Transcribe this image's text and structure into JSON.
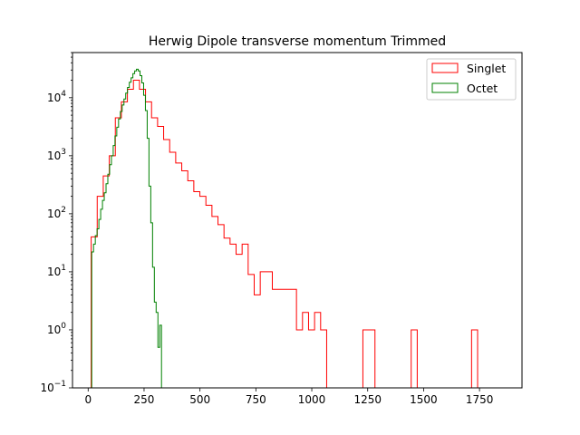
{
  "chart_data": {
    "type": "step-histogram",
    "title": "Herwig Dipole transverse momentum Trimmed",
    "xlabel": "",
    "ylabel": "",
    "xlim": [
      -70,
      1940
    ],
    "ylim": [
      0.1,
      60000
    ],
    "yscale": "log",
    "grid": false,
    "legend_position": "top-right",
    "x_ticks": [
      0,
      250,
      500,
      750,
      1000,
      1250,
      1500,
      1750
    ],
    "y_ticks": [
      {
        "value": 0.1,
        "base": "10",
        "exp": "−1"
      },
      {
        "value": 1,
        "base": "10",
        "exp": "0"
      },
      {
        "value": 10,
        "base": "10",
        "exp": "1"
      },
      {
        "value": 100,
        "base": "10",
        "exp": "2"
      },
      {
        "value": 1000,
        "base": "10",
        "exp": "3"
      },
      {
        "value": 10000,
        "base": "10",
        "exp": "4"
      }
    ],
    "series": [
      {
        "name": "Singlet",
        "color": "#ff0000",
        "edges": [
          13.5,
          40.5,
          67.5,
          94.5,
          121.5,
          148.5,
          175.5,
          202.5,
          229.5,
          256.5,
          283.5,
          310.5,
          337.5,
          364.5,
          391.5,
          418.5,
          445.5,
          472.5,
          499.5,
          526.5,
          553.5,
          580.5,
          607.5,
          634.5,
          661.5,
          688.5,
          715.5,
          742.5,
          769.5,
          796.5,
          823.5,
          850.5,
          877.5,
          904.5,
          931.5,
          958.5,
          985.5,
          1012.5,
          1039.5,
          1066.5,
          1093.5,
          1120.5,
          1147.5,
          1174.5,
          1201.5,
          1228.5,
          1255.5,
          1282.5,
          1309.5,
          1336.5,
          1363.5,
          1390.5,
          1417.5,
          1444.5,
          1471.5,
          1498.5,
          1525.5,
          1552.5,
          1579.5,
          1606.5,
          1633.5,
          1660.5,
          1687.5,
          1714.5,
          1741.5,
          1768.5,
          1795.5,
          1822.5,
          1849.5
        ],
        "counts": [
          40,
          200,
          450,
          1000,
          4500,
          8500,
          14000,
          20000,
          14000,
          8500,
          4500,
          3200,
          1900,
          1150,
          750,
          550,
          370,
          240,
          200,
          140,
          90,
          65,
          38,
          30,
          20,
          30,
          9,
          4,
          10,
          10,
          5,
          5,
          5,
          5,
          1,
          2,
          1,
          2,
          1,
          0,
          0,
          0,
          0,
          0,
          0,
          1,
          1,
          0,
          0,
          0,
          0,
          0,
          0,
          1,
          0,
          0,
          0,
          0,
          0,
          0,
          0,
          0,
          0,
          1,
          0,
          0,
          0,
          0
        ]
      },
      {
        "name": "Octet",
        "color": "#008000",
        "edges": [
          16,
          24,
          32,
          40,
          48,
          56,
          64,
          72,
          80,
          88,
          96,
          104,
          112,
          120,
          128,
          136,
          144,
          152,
          160,
          168,
          176,
          184,
          192,
          200,
          208,
          216,
          224,
          232,
          240,
          248,
          256,
          264,
          272,
          280,
          288,
          296,
          304,
          312,
          320,
          328,
          336,
          344,
          352,
          360,
          368,
          376,
          384,
          392,
          400,
          408,
          416,
          424,
          432,
          440,
          448,
          456
        ],
        "counts": [
          22,
          30,
          42,
          55,
          80,
          120,
          170,
          230,
          330,
          480,
          700,
          1000,
          1500,
          2200,
          3100,
          4300,
          5800,
          7500,
          9500,
          12000,
          15000,
          18500,
          22000,
          26000,
          29000,
          31000,
          29000,
          24000,
          18000,
          11000,
          6000,
          2000,
          300,
          70,
          12,
          3,
          2,
          0.5,
          1.2,
          0,
          0,
          0,
          0,
          0,
          0,
          0,
          0,
          0,
          0,
          0,
          0,
          0,
          0,
          0,
          0
        ],
        "bar_offset": 0
      }
    ]
  }
}
